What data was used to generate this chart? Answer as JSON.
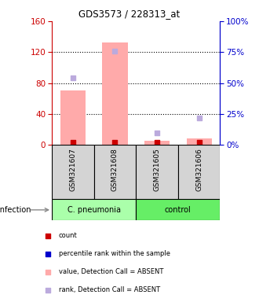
{
  "title": "GDS3573 / 228313_at",
  "samples": [
    "GSM321607",
    "GSM321608",
    "GSM321605",
    "GSM321606"
  ],
  "groups": [
    "C. pneumonia",
    "C. pneumonia",
    "control",
    "control"
  ],
  "group_spans": [
    {
      "label": "C. pneumonia",
      "start": 0,
      "end": 1,
      "color": "#aaffaa"
    },
    {
      "label": "control",
      "start": 2,
      "end": 3,
      "color": "#66ee66"
    }
  ],
  "ylim_left": [
    0,
    160
  ],
  "ylim_right": [
    0,
    100
  ],
  "yticks_left": [
    0,
    40,
    80,
    120,
    160
  ],
  "yticks_right": [
    0,
    25,
    50,
    75,
    100
  ],
  "bar_values_absent": [
    70,
    132,
    5,
    8
  ],
  "rank_absent": [
    54,
    76,
    10,
    22
  ],
  "bar_color_absent": "#ffaaaa",
  "rank_color_absent": "#bbaadd",
  "count_color": "#cc0000",
  "legend_items": [
    {
      "label": "count",
      "color": "#cc0000"
    },
    {
      "label": "percentile rank within the sample",
      "color": "#0000cc"
    },
    {
      "label": "value, Detection Call = ABSENT",
      "color": "#ffaaaa"
    },
    {
      "label": "rank, Detection Call = ABSENT",
      "color": "#bbaadd"
    }
  ],
  "infection_label": "infection",
  "left_axis_color": "#cc0000",
  "right_axis_color": "#0000cc",
  "background_color": "#ffffff",
  "bar_width": 0.6,
  "sample_cell_color": "#d4d4d4"
}
